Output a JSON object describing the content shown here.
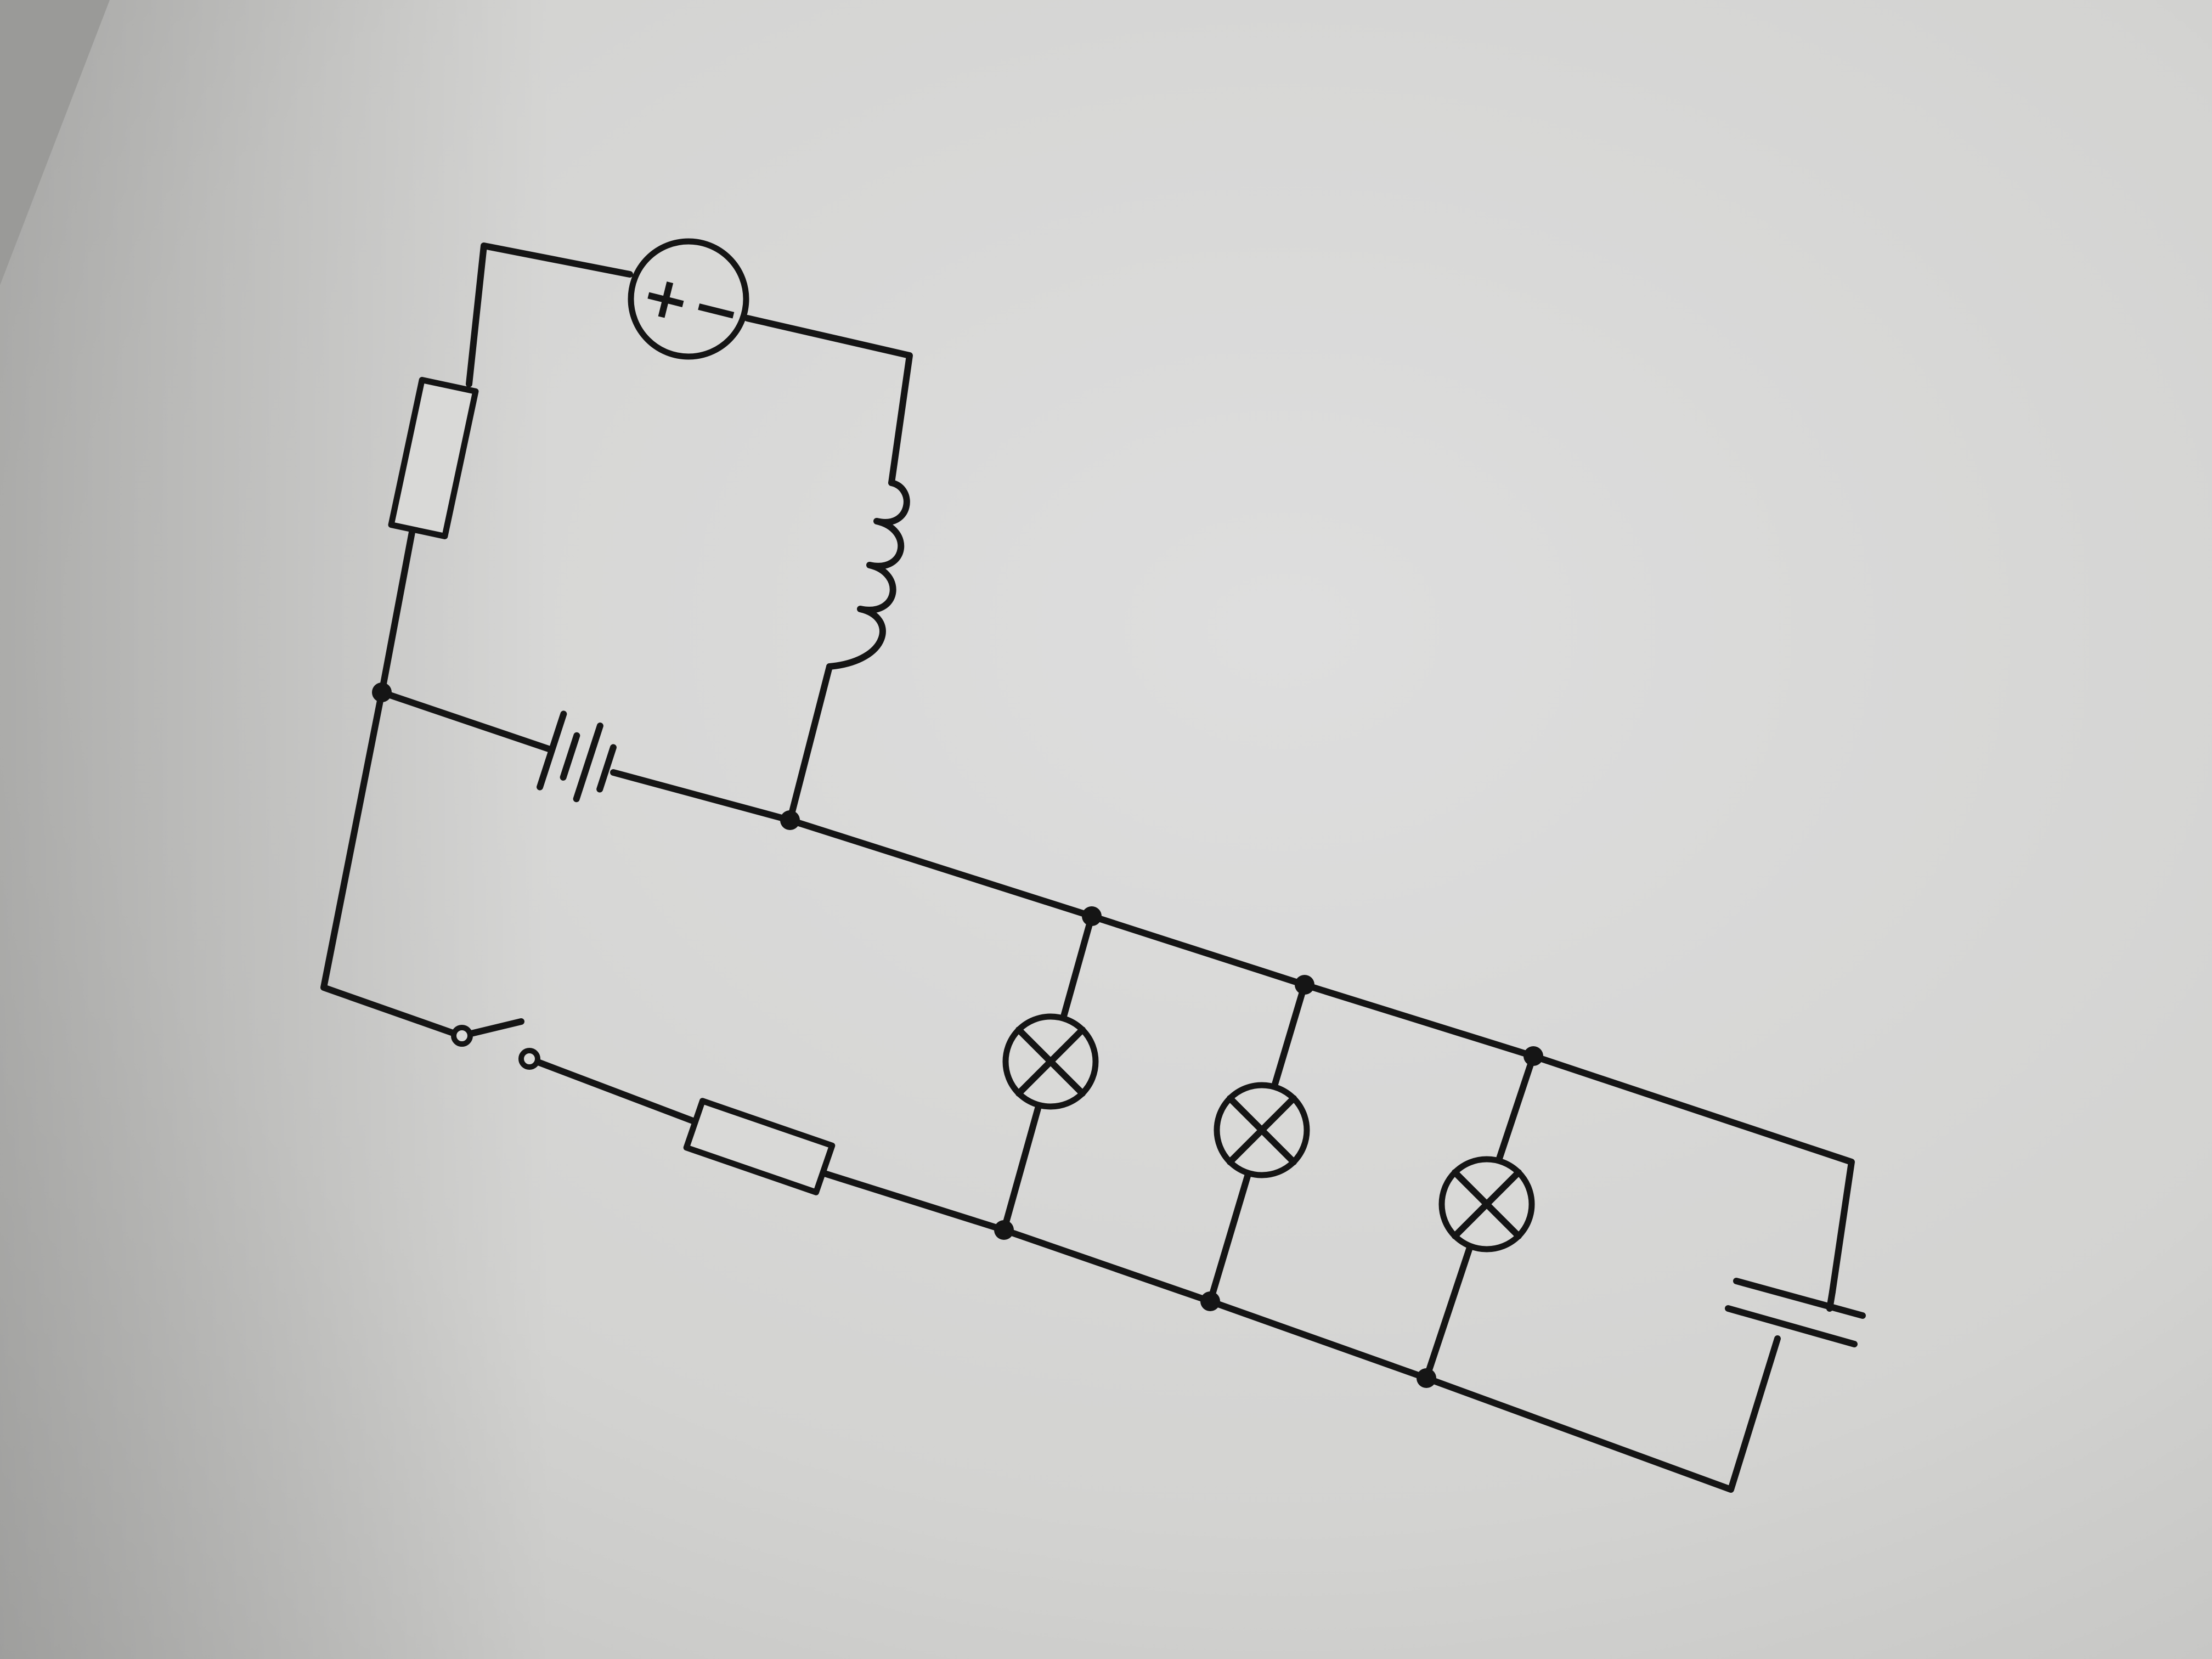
{
  "diagram": {
    "type": "circuit-schematic",
    "colors": {
      "paper": "#d9d9d7",
      "ink": "#151515",
      "shadow": "#9a9a98"
    },
    "source": {
      "plus_sign": "+",
      "minus_sign": "−"
    },
    "components": [
      {
        "kind": "ammeter-source",
        "icon": "circle-plus-minus-icon"
      },
      {
        "kind": "resistor",
        "icon": "resistor-rectangle-icon"
      },
      {
        "kind": "inductor",
        "icon": "coil-icon"
      },
      {
        "kind": "battery",
        "icon": "multi-cell-battery-icon"
      },
      {
        "kind": "switch",
        "state": "open",
        "icon": "open-switch-icon"
      },
      {
        "kind": "resistor",
        "icon": "resistor-rectangle-icon"
      },
      {
        "kind": "lamp",
        "icon": "lamp-cross-icon"
      },
      {
        "kind": "lamp",
        "icon": "lamp-cross-icon"
      },
      {
        "kind": "lamp",
        "icon": "lamp-cross-icon"
      },
      {
        "kind": "capacitor",
        "icon": "capacitor-plates-icon"
      }
    ]
  }
}
